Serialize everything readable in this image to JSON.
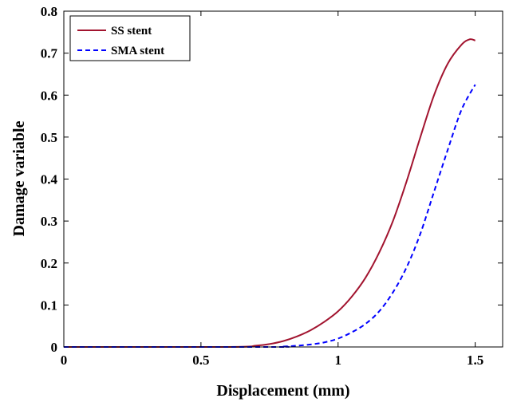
{
  "chart_data": {
    "type": "line",
    "title": "",
    "xlabel": "Displacement (mm)",
    "ylabel": "Damage variable",
    "xlim": [
      0,
      1.6
    ],
    "ylim": [
      0,
      0.8
    ],
    "xticks": [
      0,
      0.5,
      1,
      1.5
    ],
    "xtick_labels": [
      "0",
      "0.5",
      "1",
      "1.5"
    ],
    "yticks": [
      0,
      0.1,
      0.2,
      0.3,
      0.4,
      0.5,
      0.6,
      0.7,
      0.8
    ],
    "ytick_labels": [
      "0",
      "0.1",
      "0.2",
      "0.3",
      "0.4",
      "0.5",
      "0.6",
      "0.7",
      "0.8"
    ],
    "grid": false,
    "legend": "top-left",
    "series": [
      {
        "name": "SS stent",
        "color": "#a2142f",
        "style": "solid",
        "x": [
          0,
          0.6,
          0.7,
          0.75,
          0.8,
          0.85,
          0.9,
          0.95,
          1.0,
          1.05,
          1.1,
          1.15,
          1.2,
          1.25,
          1.3,
          1.35,
          1.4,
          1.45,
          1.48,
          1.5
        ],
        "y": [
          0,
          0,
          0.003,
          0.007,
          0.014,
          0.025,
          0.04,
          0.06,
          0.085,
          0.12,
          0.165,
          0.225,
          0.3,
          0.395,
          0.5,
          0.6,
          0.675,
          0.72,
          0.733,
          0.73
        ]
      },
      {
        "name": "SMA stent",
        "color": "#0000ff",
        "style": "dashed",
        "x": [
          0,
          0.75,
          0.8,
          0.85,
          0.9,
          0.95,
          1.0,
          1.05,
          1.1,
          1.15,
          1.2,
          1.25,
          1.3,
          1.35,
          1.4,
          1.45,
          1.5
        ],
        "y": [
          0,
          0,
          0.001,
          0.003,
          0.006,
          0.011,
          0.02,
          0.035,
          0.055,
          0.085,
          0.13,
          0.19,
          0.27,
          0.37,
          0.47,
          0.565,
          0.625
        ]
      }
    ]
  }
}
